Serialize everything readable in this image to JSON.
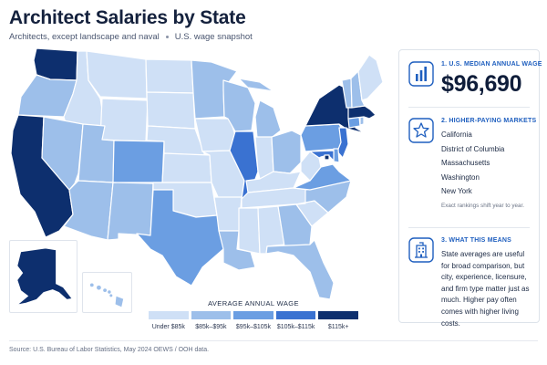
{
  "header": {
    "title": "Architect Salaries by State",
    "subtitle_left": "Architects, except landscape and naval",
    "subtitle_right": "U.S. wage snapshot"
  },
  "colors": {
    "tier1": "#cfe0f6",
    "tier2": "#9dbfea",
    "tier3": "#6b9ee2",
    "tier4": "#3a72d1",
    "tier5": "#0d2f6e",
    "accent": "#1f5fbf"
  },
  "map": {
    "states_by_tier": {
      "tier1": [
        "Idaho",
        "Montana",
        "Wyoming",
        "North Dakota",
        "South Dakota",
        "Nebraska",
        "Kansas",
        "Oklahoma",
        "Iowa",
        "Missouri",
        "Arkansas",
        "Indiana",
        "Kentucky",
        "West Virginia",
        "Tennessee",
        "Mississippi",
        "Alabama",
        "South Carolina",
        "Maine"
      ],
      "tier2": [
        "Oregon",
        "Nevada",
        "Utah",
        "Arizona",
        "New Mexico",
        "Louisiana",
        "Minnesota",
        "Wisconsin",
        "Michigan",
        "Ohio",
        "Georgia",
        "Florida",
        "North Carolina",
        "Vermont",
        "New Hampshire",
        "Hawaii"
      ],
      "tier3": [
        "Colorado",
        "Texas",
        "Pennsylvania",
        "Virginia",
        "Delaware",
        "Connecticut"
      ],
      "tier4": [
        "Illinois",
        "New Jersey",
        "Maryland"
      ],
      "tier5": [
        "Washington",
        "California",
        "New York",
        "Massachusetts",
        "District of Columbia",
        "Alaska"
      ]
    }
  },
  "legend": {
    "title": "AVERAGE ANNUAL WAGE",
    "items": [
      {
        "label": "Under $85k",
        "color": "#cfe0f6"
      },
      {
        "label": "$85k–$95k",
        "color": "#9dbfea"
      },
      {
        "label": "$95k–$105k",
        "color": "#6b9ee2"
      },
      {
        "label": "$105k–$115k",
        "color": "#3a72d1"
      },
      {
        "label": "$115k+",
        "color": "#0d2f6e"
      }
    ]
  },
  "panel": {
    "median": {
      "heading": "1. U.S. MEDIAN ANNUAL WAGE",
      "value": "$96,690",
      "icon": "bar-chart-icon"
    },
    "markets": {
      "heading": "2. HIGHER-PAYING MARKETS",
      "items": [
        "California",
        "District of Columbia",
        "Massachusetts",
        "Washington",
        "New York"
      ],
      "note": "Exact rankings shift year to year.",
      "icon": "star-icon"
    },
    "meaning": {
      "heading": "3. WHAT THIS MEANS",
      "text": "State averages are useful for broad comparison, but city, experience, licensure, and firm type matter just as much. Higher pay often comes with higher living costs.",
      "icon": "building-icon"
    }
  },
  "footer": {
    "source": "Source: U.S. Bureau of Labor Statistics, May 2024 OEWS / OOH data."
  }
}
